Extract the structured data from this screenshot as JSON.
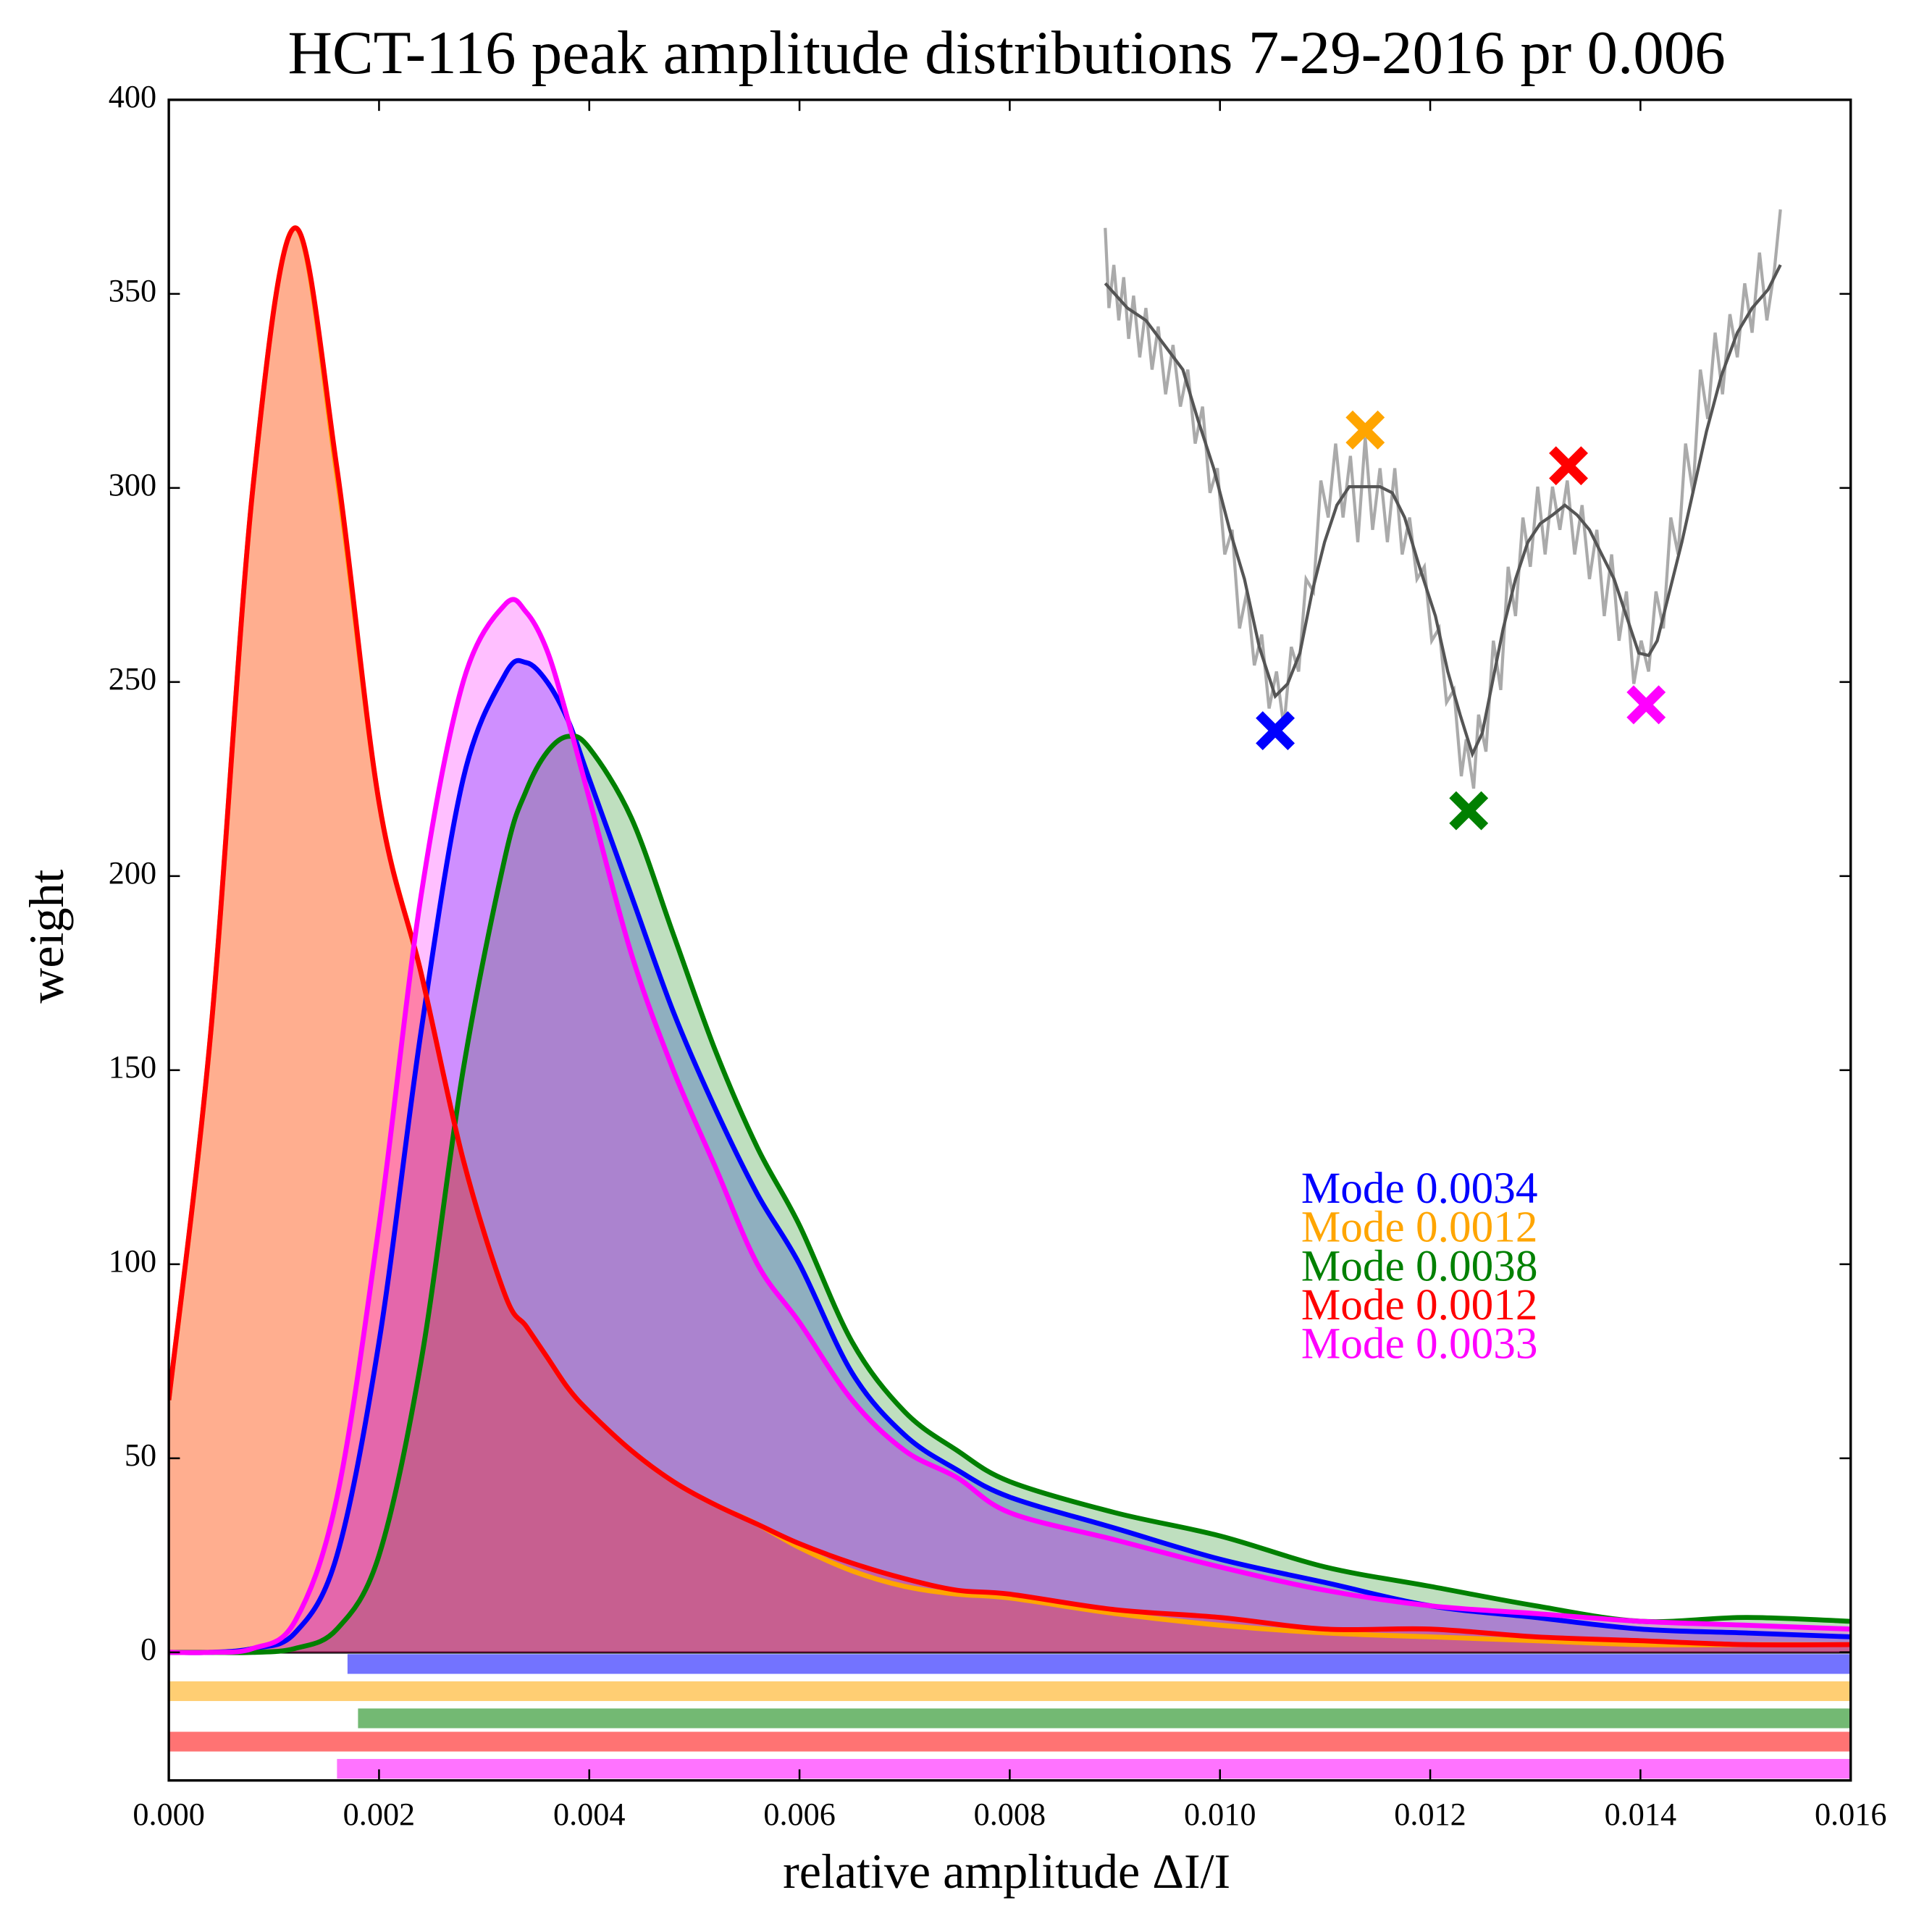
{
  "chart_data": {
    "type": "kde",
    "title": "HCT-116 peak amplitude distributions 7-29-2016 pr 0.006",
    "xlabel": "relative amplitude ΔI/I",
    "ylabel": "weight",
    "xlim": [
      0,
      0.016
    ],
    "ylim": [
      -33,
      400
    ],
    "xticks": [
      {
        "value": 0,
        "label": "0.000"
      },
      {
        "value": 0.002,
        "label": "0.002"
      },
      {
        "value": 0.004,
        "label": "0.004"
      },
      {
        "value": 0.006,
        "label": "0.006"
      },
      {
        "value": 0.008,
        "label": "0.008"
      },
      {
        "value": 0.01,
        "label": "0.010"
      },
      {
        "value": 0.012,
        "label": "0.012"
      },
      {
        "value": 0.014,
        "label": "0.014"
      },
      {
        "value": 0.016,
        "label": "0.016"
      }
    ],
    "yticks": [
      0,
      50,
      100,
      150,
      200,
      250,
      300,
      350,
      400
    ],
    "hline": 0,
    "x": [
      0,
      0.0004,
      0.0008,
      0.0012,
      0.0016,
      0.002,
      0.0024,
      0.0028,
      0.0032,
      0.0034,
      0.0036,
      0.0038,
      0.004,
      0.0044,
      0.0048,
      0.0052,
      0.0056,
      0.006,
      0.0065,
      0.007,
      0.0075,
      0.008,
      0.009,
      0.01,
      0.011,
      0.012,
      0.013,
      0.014,
      0.015,
      0.016
    ],
    "series": [
      {
        "color": "#0000ff",
        "values": [
          0,
          0,
          1,
          5,
          25,
          80,
          160,
          225,
          252,
          255,
          250,
          240,
          225,
          195,
          165,
          140,
          118,
          100,
          72,
          56,
          47,
          40,
          32,
          24,
          18,
          12,
          9,
          6,
          5,
          4
        ],
        "rug_y": -3,
        "rug_xlim": [
          0.0017,
          0.016
        ]
      },
      {
        "color": "#ffa500",
        "values": [
          65,
          160,
          300,
          367,
          303,
          219,
          175,
          127,
          92,
          84,
          76,
          68,
          62,
          52,
          44,
          38,
          33,
          27,
          21,
          17,
          15,
          14,
          10,
          7,
          5,
          4,
          3,
          2,
          2,
          2
        ],
        "rug_y": -10,
        "rug_xlim": [
          0,
          0.016
        ]
      },
      {
        "color": "#008000",
        "values": [
          0,
          0,
          0,
          1,
          6,
          25,
          75,
          150,
          205,
          222,
          232,
          236,
          233,
          215,
          185,
          155,
          130,
          110,
          80,
          62,
          52,
          44,
          36,
          30,
          22,
          17,
          12,
          8,
          9,
          8
        ],
        "rug_y": -17,
        "rug_xlim": [
          0.0018,
          0.016
        ]
      },
      {
        "color": "#ff0000",
        "values": [
          65,
          160,
          300,
          367,
          305,
          219,
          175,
          127,
          92,
          84,
          76,
          68,
          62,
          52,
          44,
          38,
          33,
          28,
          23,
          19,
          16,
          15,
          11,
          9,
          6,
          6,
          4,
          3,
          2,
          2
        ],
        "rug_y": -23,
        "rug_xlim": [
          0,
          0.016
        ]
      },
      {
        "color": "#ff00ff",
        "values": [
          0,
          0,
          1,
          8,
          40,
          110,
          195,
          250,
          270,
          268,
          258,
          240,
          220,
          180,
          150,
          125,
          100,
          85,
          65,
          52,
          45,
          36,
          29,
          22,
          16,
          12,
          10,
          8,
          7,
          6
        ],
        "rug_y": -30,
        "rug_xlim": [
          0.0016,
          0.016
        ]
      }
    ],
    "annotations": [
      {
        "text": "Mode 0.0034",
        "color": "#0000ff"
      },
      {
        "text": "Mode 0.0012",
        "color": "#ffa500"
      },
      {
        "text": "Mode 0.0038",
        "color": "#008000"
      },
      {
        "text": "Mode 0.0012",
        "color": "#ff0000"
      },
      {
        "text": "Mode 0.0033",
        "color": "#ff00ff"
      }
    ]
  }
}
